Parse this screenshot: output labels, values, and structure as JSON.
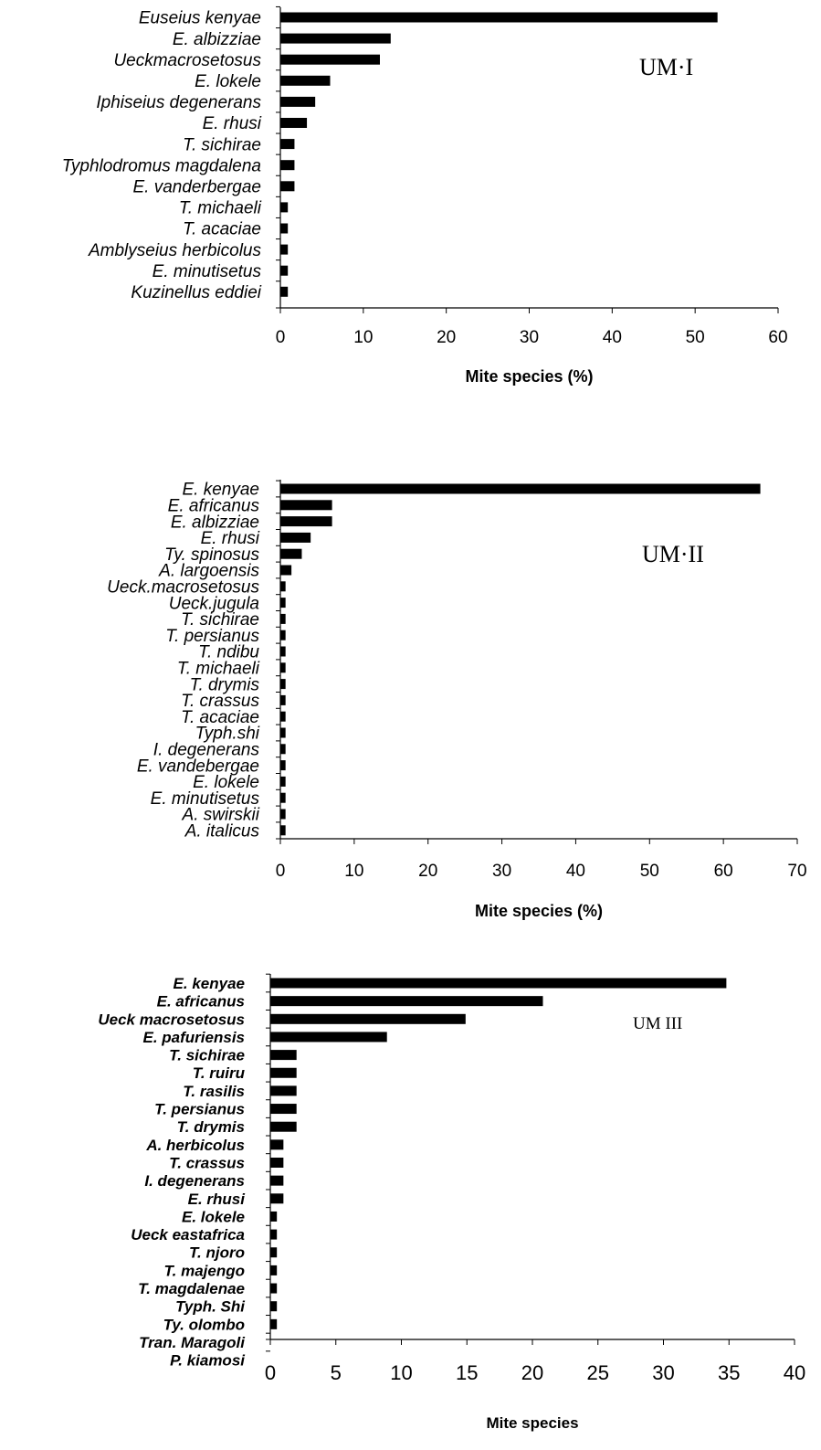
{
  "chart_data": [
    {
      "type": "bar",
      "orientation": "horizontal",
      "panel_label": "UM·I",
      "categories": [
        "Euseius kenyae",
        "E. albizziae",
        "Ueckmacrosetosus",
        "E. lokele",
        "Iphiseius degenerans",
        "E. rhusi",
        "T. sichirae",
        "Typhlodromus magdalena",
        "E. vanderbergae",
        "T. michaeli",
        "T. acaciae",
        "Amblyseius herbicolus",
        "E. minutisetus",
        "Kuzinellus eddiei"
      ],
      "values": [
        52.7,
        13.3,
        12.0,
        6.0,
        4.2,
        3.2,
        1.7,
        1.7,
        1.7,
        0.9,
        0.9,
        0.9,
        0.9,
        0.9
      ],
      "xlabel": "Mite species (%)",
      "ylabel": "",
      "xlim": [
        0,
        60
      ],
      "xticks": [
        0,
        10,
        20,
        30,
        40,
        50,
        60
      ],
      "grid": false,
      "bar_color": "#000000"
    },
    {
      "type": "bar",
      "orientation": "horizontal",
      "panel_label": "UM·II",
      "categories": [
        "E. kenyae",
        "E. africanus",
        "E. albizziae",
        "E. rhusi",
        "Ty. spinosus",
        "A. largoensis",
        "Ueck.macrosetosus",
        "Ueck.jugula",
        "T. sichirae",
        "T. persianus",
        "T. ndibu",
        "T. michaeli",
        "T. drymis",
        "T. crassus",
        "T. acaciae",
        "Typh.shi",
        "I. degenerans",
        "E. vandebergae",
        "E. lokele",
        "E. minutisetus",
        "A. swirskii",
        "A. italicus"
      ],
      "values": [
        65.0,
        7.0,
        7.0,
        4.1,
        2.9,
        1.5,
        0.7,
        0.7,
        0.7,
        0.7,
        0.7,
        0.7,
        0.7,
        0.7,
        0.7,
        0.7,
        0.7,
        0.7,
        0.7,
        0.7,
        0.7,
        0.7
      ],
      "xlabel": "Mite species (%)",
      "ylabel": "",
      "xlim": [
        0,
        70
      ],
      "xticks": [
        0,
        10,
        20,
        30,
        40,
        50,
        60,
        70
      ],
      "grid": false,
      "bar_color": "#000000"
    },
    {
      "type": "bar",
      "orientation": "horizontal",
      "panel_label": "UM III",
      "categories": [
        "E. kenyae",
        "E. africanus",
        "Ueck macrosetosus",
        "E. pafuriensis",
        "T. sichirae",
        "T. ruiru",
        "T. rasilis",
        "T. persianus",
        "T. drymis",
        "A. herbicolus",
        "T. crassus",
        "I. degenerans",
        "E. rhusi",
        "E. lokele",
        "Ueck eastafrica",
        "T. njoro",
        "T. majengo",
        "T. magdalenae",
        "Typh. Shi",
        "Ty. olombo",
        "Tran. Maragoli",
        "P. kiamosi"
      ],
      "values": [
        34.8,
        20.8,
        14.9,
        8.9,
        2.0,
        2.0,
        2.0,
        2.0,
        2.0,
        1.0,
        1.0,
        1.0,
        1.0,
        0.5,
        0.5,
        0.5,
        0.5,
        0.5,
        0.5,
        0.5,
        0,
        0
      ],
      "xlabel": "Mite species",
      "ylabel": "",
      "xlim": [
        0,
        40
      ],
      "xticks": [
        0,
        5,
        10,
        15,
        20,
        25,
        30,
        35,
        40
      ],
      "grid": false,
      "bar_color": "#000000"
    }
  ]
}
